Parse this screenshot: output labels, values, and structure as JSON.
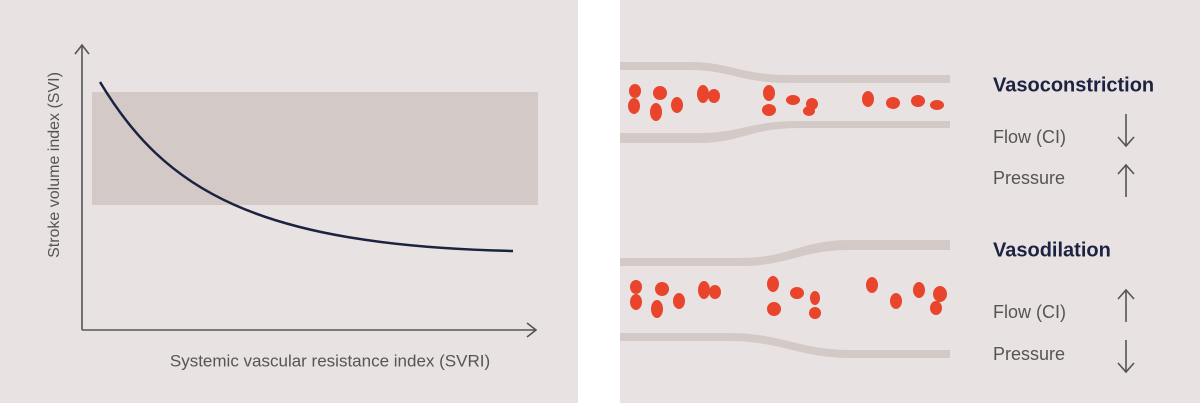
{
  "left_panel": {
    "y_axis_label": "Stroke volume index (SVI)",
    "x_axis_label": "Systemic vascular resistance index (SVRI)"
  },
  "right_panel": {
    "sections": [
      {
        "title": "Vasoconstriction",
        "rows": [
          {
            "label": "Flow (CI)"
          },
          {
            "label": "Pressure"
          }
        ]
      },
      {
        "title": "Vasodilation",
        "rows": [
          {
            "label": "Flow (CI)"
          },
          {
            "label": "Pressure"
          }
        ]
      }
    ]
  }
}
